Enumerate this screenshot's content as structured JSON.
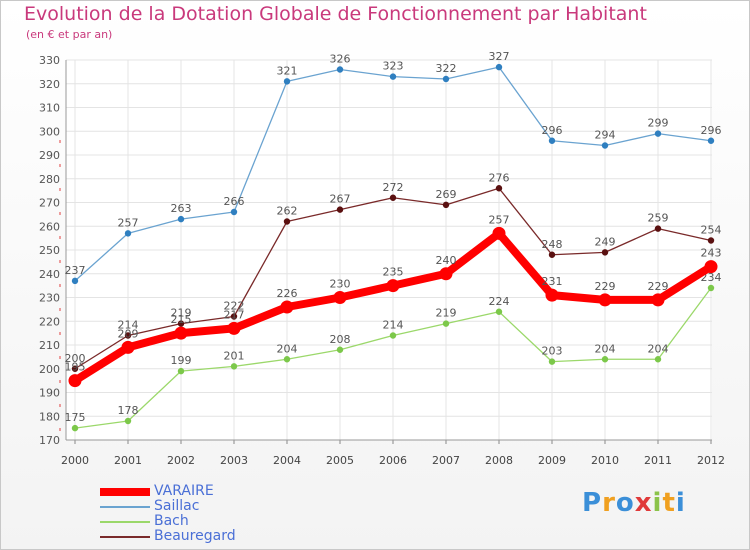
{
  "title": "Evolution de la Dotation Globale de Fonctionnement par Habitant",
  "subtitle": "(en € et par an)",
  "logo": {
    "letters": [
      "P",
      "r",
      "o",
      "x",
      "i",
      "t",
      "i"
    ],
    "colors": [
      "#3b8fd8",
      "#f0a020",
      "#3b8fd8",
      "#e03a3a",
      "#8bc34a",
      "#f0a020",
      "#3b8fd8"
    ]
  },
  "chart_data": {
    "type": "line",
    "x": [
      "2000",
      "2001",
      "2002",
      "2003",
      "2004",
      "2005",
      "2006",
      "2007",
      "2008",
      "2009",
      "2010",
      "2011",
      "2012"
    ],
    "ylim": [
      170,
      330
    ],
    "yticks": [
      170,
      180,
      190,
      200,
      210,
      220,
      230,
      240,
      250,
      260,
      270,
      280,
      290,
      300,
      310,
      320,
      330
    ],
    "grid": true,
    "legend_position": "bottom-left",
    "series": [
      {
        "name": "VARAIRE",
        "color": "#ff0000",
        "values": [
          195,
          209,
          215,
          217,
          226,
          230,
          235,
          240,
          257,
          231,
          229,
          229,
          243
        ]
      },
      {
        "name": "Saillac",
        "color": "#6aa3d0",
        "values": [
          237,
          257,
          263,
          266,
          321,
          326,
          323,
          322,
          327,
          296,
          294,
          299,
          296
        ]
      },
      {
        "name": "Bach",
        "color": "#9bd86a",
        "values": [
          175,
          178,
          199,
          201,
          204,
          208,
          214,
          219,
          224,
          203,
          204,
          204,
          234
        ]
      },
      {
        "name": "Beauregard",
        "color": "#7a2a2a",
        "values": [
          200,
          214,
          219,
          222,
          262,
          267,
          272,
          269,
          276,
          248,
          249,
          259,
          254
        ]
      }
    ]
  }
}
